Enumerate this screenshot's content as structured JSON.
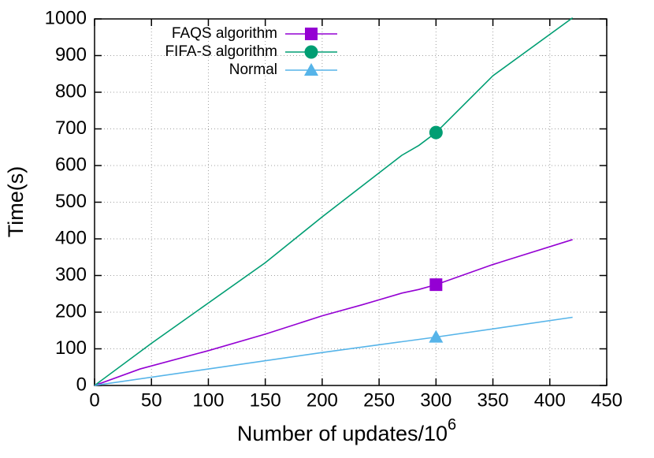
{
  "chart_data": {
    "type": "line",
    "ylabel": "Time(s)",
    "xlabel": "Number of updates/10",
    "xlabel_sup": "6",
    "xlim": [
      0,
      450
    ],
    "ylim": [
      0,
      1000
    ],
    "xticks": [
      0,
      50,
      100,
      150,
      200,
      250,
      300,
      350,
      400,
      450
    ],
    "yticks": [
      0,
      100,
      200,
      300,
      400,
      500,
      600,
      700,
      800,
      900,
      1000
    ],
    "grid": true,
    "legend": "top-left",
    "marked_x": 300,
    "series": [
      {
        "name": "FAQS algorithm",
        "color": "#9400d3",
        "marker": "square",
        "x": [
          0,
          40,
          100,
          150,
          200,
          235,
          270,
          285,
          300,
          350,
          420
        ],
        "values": [
          0,
          45,
          95,
          140,
          190,
          220,
          252,
          262,
          275,
          330,
          398
        ]
      },
      {
        "name": "FIFA-S algorithm",
        "color": "#009e73",
        "marker": "circle",
        "x": [
          0,
          50,
          100,
          150,
          180,
          200,
          270,
          285,
          300,
          350,
          420
        ],
        "values": [
          0,
          115,
          225,
          335,
          410,
          460,
          628,
          655,
          690,
          845,
          1003
        ]
      },
      {
        "name": "Normal",
        "color": "#56b4e9",
        "marker": "triangle",
        "x": [
          0,
          100,
          200,
          300,
          420
        ],
        "values": [
          0,
          45,
          90,
          132,
          186
        ]
      }
    ]
  }
}
